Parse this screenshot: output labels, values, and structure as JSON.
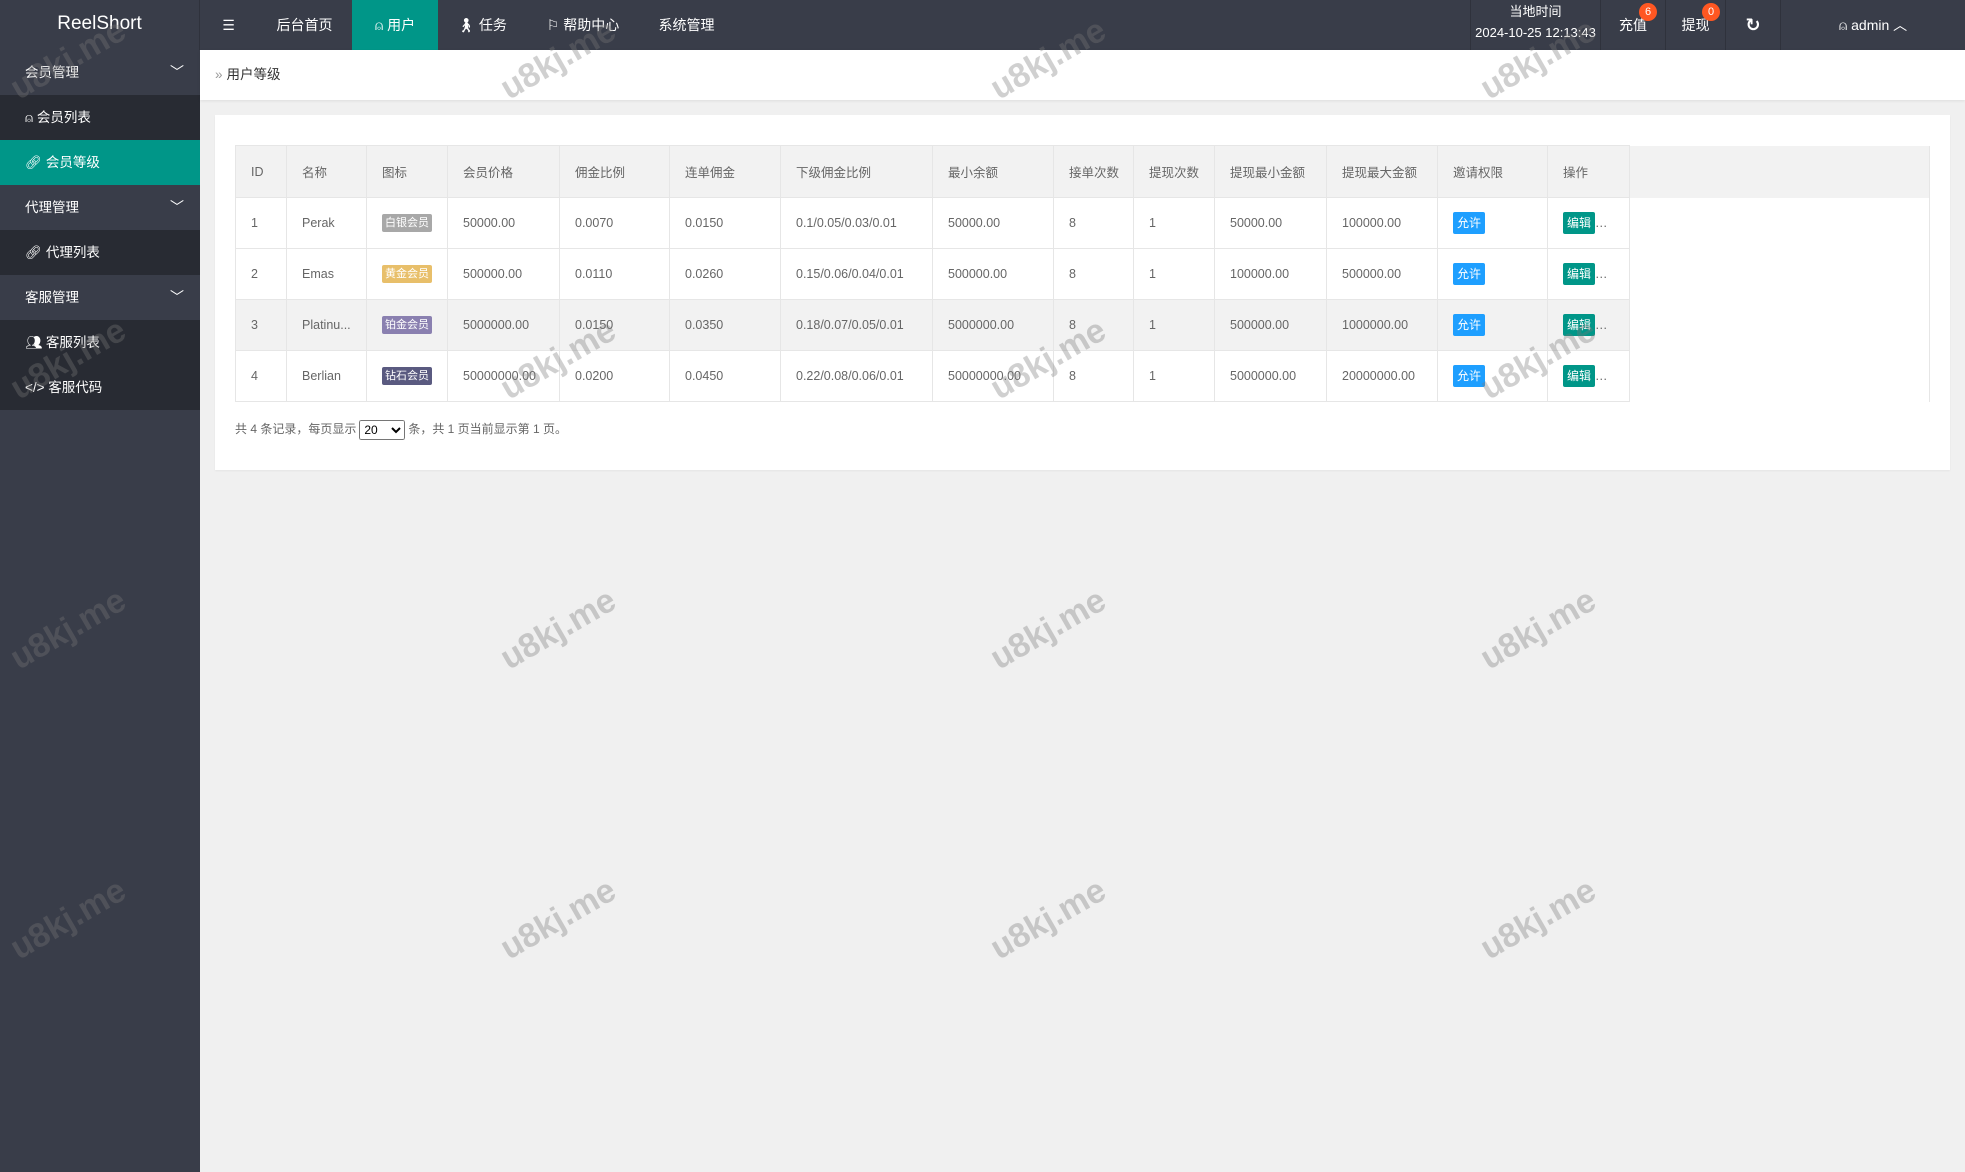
{
  "app": {
    "title": "ReelShort"
  },
  "nav": [
    {
      "label": "后台首页"
    },
    {
      "label": "用户",
      "active": true
    },
    {
      "label": "任务"
    },
    {
      "label": "帮助中心"
    },
    {
      "label": "系统管理"
    }
  ],
  "header": {
    "time_label": "当地时间",
    "time_value": "2024-10-25 12:13:43",
    "recharge": "充值",
    "recharge_count": "6",
    "withdraw": "提现",
    "withdraw_count": "0",
    "user": "admin"
  },
  "sidebar": {
    "groups": [
      {
        "label": "会员管理",
        "items": [
          {
            "label": "会员列表",
            "icon": "user-icon"
          },
          {
            "label": "会员等级",
            "icon": "link-icon",
            "active": true
          }
        ]
      },
      {
        "label": "代理管理",
        "items": [
          {
            "label": "代理列表",
            "icon": "link-icon"
          }
        ]
      },
      {
        "label": "客服管理",
        "items": [
          {
            "label": "客服列表",
            "icon": "users-icon"
          },
          {
            "label": "客服代码",
            "icon": "code-icon"
          }
        ]
      }
    ]
  },
  "breadcrumb": "用户等级",
  "table": {
    "headers": [
      "ID",
      "名称",
      "图标",
      "会员价格",
      "佣金比例",
      "连单佣金",
      "下级佣金比例",
      "最小余额",
      "接单次数",
      "提现次数",
      "提现最小金额",
      "提现最大金额",
      "邀请权限",
      "操作"
    ],
    "rows": [
      {
        "id": "1",
        "name": "Perak",
        "icon": "白银会员",
        "icon_color": "#a8a8a8",
        "price": "50000.00",
        "rate": "0.0070",
        "combo": "0.0150",
        "sub": "0.1/0.05/0.03/0.01",
        "min": "50000.00",
        "orders": "8",
        "wd": "1",
        "wdmin": "50000.00",
        "wdmax": "100000.00",
        "invite": "允许",
        "edit": "编辑"
      },
      {
        "id": "2",
        "name": "Emas",
        "icon": "黄金会员",
        "icon_color": "#e8bf6a",
        "price": "500000.00",
        "rate": "0.0110",
        "combo": "0.0260",
        "sub": "0.15/0.06/0.04/0.01",
        "min": "500000.00",
        "orders": "8",
        "wd": "1",
        "wdmin": "100000.00",
        "wdmax": "500000.00",
        "invite": "允许",
        "edit": "编辑"
      },
      {
        "id": "3",
        "name": "Platinu...",
        "icon": "铂金会员",
        "icon_color": "#8a80b0",
        "price": "5000000.00",
        "rate": "0.0150",
        "combo": "0.0350",
        "sub": "0.18/0.07/0.05/0.01",
        "min": "5000000.00",
        "orders": "8",
        "wd": "1",
        "wdmin": "500000.00",
        "wdmax": "1000000.00",
        "invite": "允许",
        "edit": "编辑"
      },
      {
        "id": "4",
        "name": "Berlian",
        "icon": "钻石会员",
        "icon_color": "#5a5a80",
        "price": "50000000.00",
        "rate": "0.0200",
        "combo": "0.0450",
        "sub": "0.22/0.08/0.06/0.01",
        "min": "50000000.00",
        "orders": "8",
        "wd": "1",
        "wdmin": "5000000.00",
        "wdmax": "20000000.00",
        "invite": "允许",
        "edit": "编辑"
      }
    ]
  },
  "pagination": {
    "prefix": "共 4 条记录，每页显示",
    "page_size": "20",
    "suffix": "条，共 1 页当前显示第 1 页。"
  },
  "colors": {
    "topbar": "#393d49",
    "accent": "#009688",
    "invite": "#1e9fff",
    "badge": "#ff5722"
  },
  "watermark": "u8kj.me"
}
